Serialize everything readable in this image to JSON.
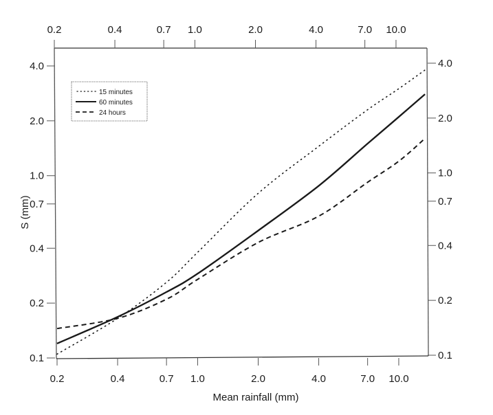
{
  "chart_data": {
    "type": "line",
    "title": "",
    "xlabel": "Mean rainfall (mm)",
    "ylabel": "S (mm)",
    "xscale": "log",
    "yscale": "log",
    "xlim": [
      0.2,
      13.5
    ],
    "ylim": [
      0.1,
      4.6
    ],
    "grid": false,
    "legend_position": "upper-left",
    "x_ticks": [
      0.2,
      0.4,
      0.7,
      1.0,
      2.0,
      4.0,
      7.0,
      10.0
    ],
    "x_tick_labels": [
      "0.2",
      "0.4",
      "0.7",
      "1.0",
      "2.0",
      "4.0",
      "7.0",
      "10.0"
    ],
    "y_ticks": [
      0.1,
      0.2,
      0.4,
      0.7,
      1.0,
      2.0,
      4.0
    ],
    "y_tick_labels": [
      "0.1",
      "0.2",
      "0.4",
      "0.7",
      "1.0",
      "2.0",
      "4.0"
    ],
    "mirror_axes": {
      "top": true,
      "right": true
    },
    "x": [
      0.2,
      0.4,
      0.7,
      1.0,
      2.0,
      4.0,
      7.0,
      10.0,
      13.5
    ],
    "series": [
      {
        "name": "15 minutes",
        "style": "dotted",
        "values": [
          0.105,
          0.165,
          0.26,
          0.38,
          0.8,
          1.45,
          2.3,
          3.0,
          3.8
        ]
      },
      {
        "name": "60 minutes",
        "style": "solid",
        "values": [
          0.12,
          0.168,
          0.23,
          0.29,
          0.5,
          0.88,
          1.5,
          2.1,
          2.8
        ]
      },
      {
        "name": "24 hours",
        "style": "dashed",
        "values": [
          0.145,
          0.165,
          0.21,
          0.27,
          0.43,
          0.6,
          0.92,
          1.2,
          1.6
        ]
      }
    ]
  },
  "legend": {
    "items": [
      {
        "label": "15 minutes",
        "style": "dotted"
      },
      {
        "label": "60 minutes",
        "style": "solid"
      },
      {
        "label": "24 hours",
        "style": "dashed"
      }
    ]
  },
  "axes": {
    "x_title": "Mean rainfall (mm)",
    "y_title": "S (mm)"
  },
  "colors": {
    "line": "#1a1a1a",
    "axis": "#333333",
    "background": "#ffffff"
  }
}
